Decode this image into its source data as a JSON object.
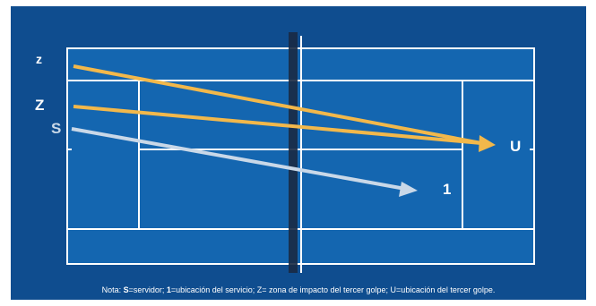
{
  "labels": {
    "z_small": "z",
    "z_big": "Z",
    "s": "S",
    "u": "U",
    "one": "1"
  },
  "note": {
    "prefix": "Nota: ",
    "s_key": "S",
    "s_text": "=servidor; ",
    "one_key": "1",
    "one_text": "=ubicación del servicio; Z= zona de impacto del tercer golpe; U=ubicación del tercer golpe."
  },
  "colors": {
    "background": "#0f4d8f",
    "court": "#1466b0",
    "lines": "#ffffff",
    "net": "#1a2a44",
    "third_shot_arrow": "#f2b84b",
    "serve_arrow": "#c9d8e8"
  }
}
